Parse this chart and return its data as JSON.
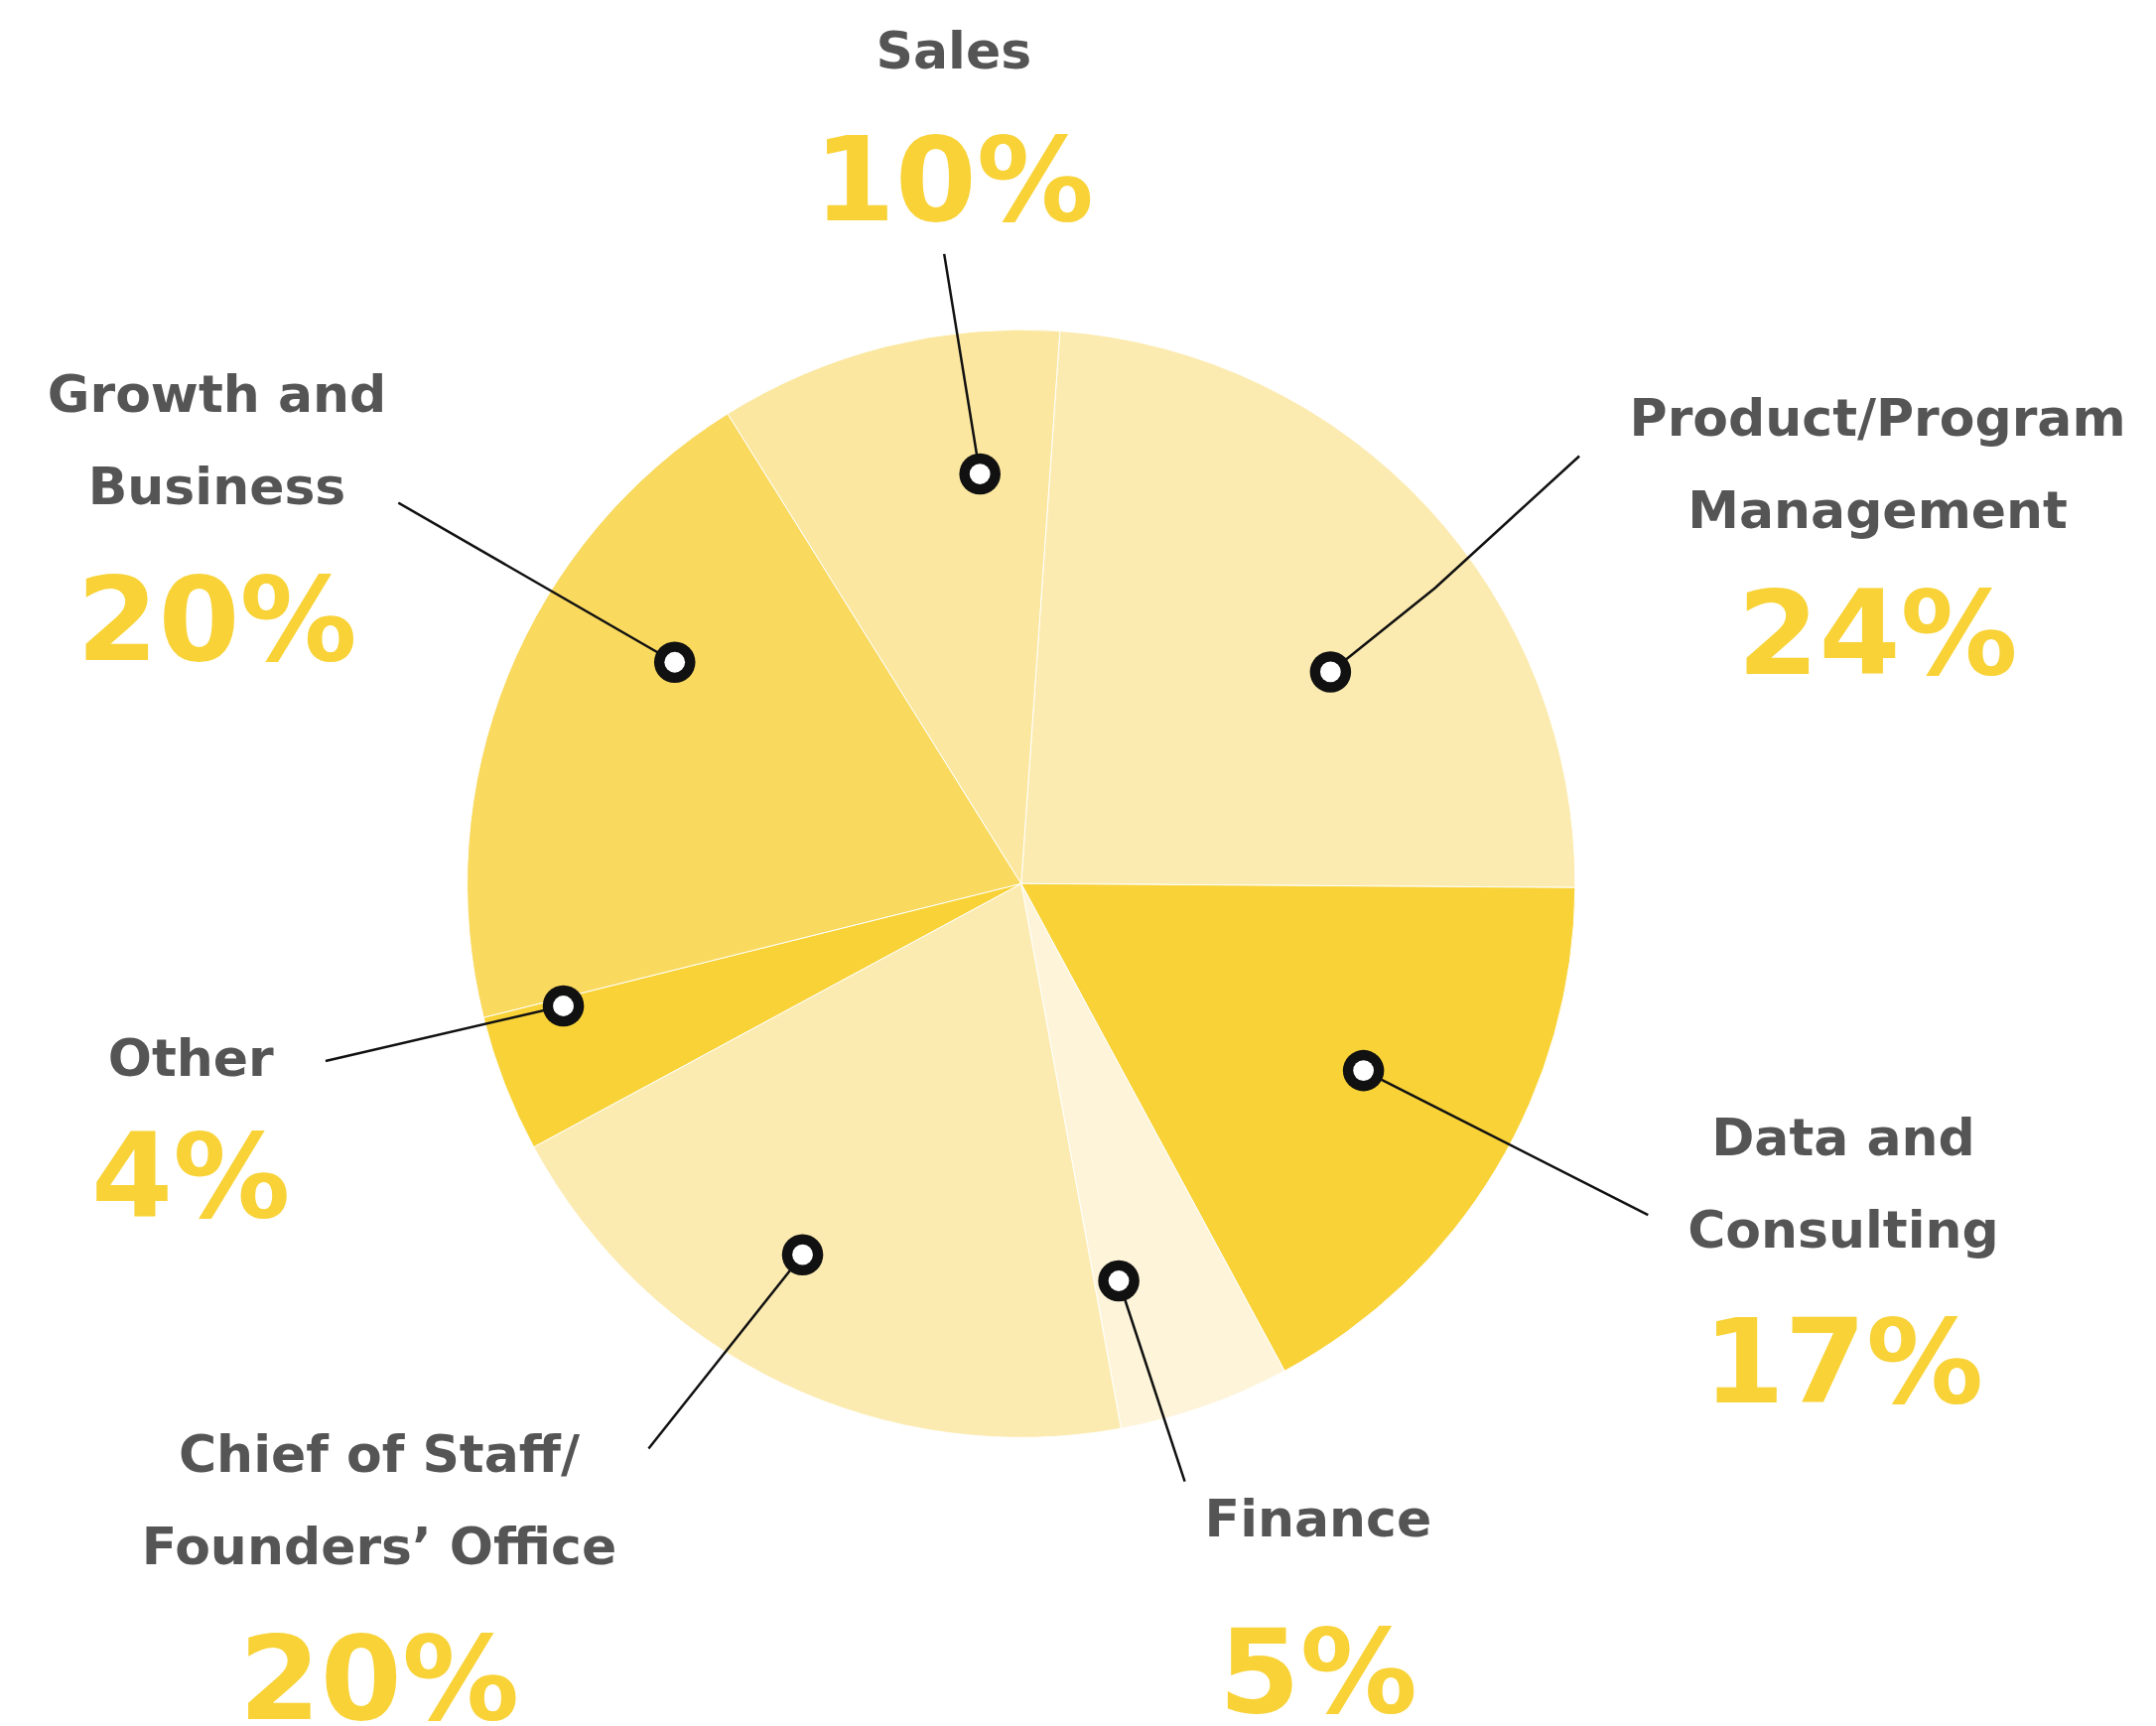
{
  "chart_data": {
    "type": "pie",
    "categories": [
      "Product/Program Management",
      "Data and Consulting",
      "Finance",
      "Chief of Staff/ Founders’ Office",
      "Other",
      "Growth and Business",
      "Sales"
    ],
    "values": [
      24,
      17,
      5,
      20,
      4,
      20,
      10
    ],
    "value_labels": [
      "24%",
      "17%",
      "5%",
      "20%",
      "4%",
      "20%",
      "10%"
    ],
    "colors": [
      "#fcebb0",
      "#f8d236",
      "#fdf4d9",
      "#fcebb0",
      "#f8d236",
      "#f9d95e",
      "#fbe79f"
    ]
  }
}
